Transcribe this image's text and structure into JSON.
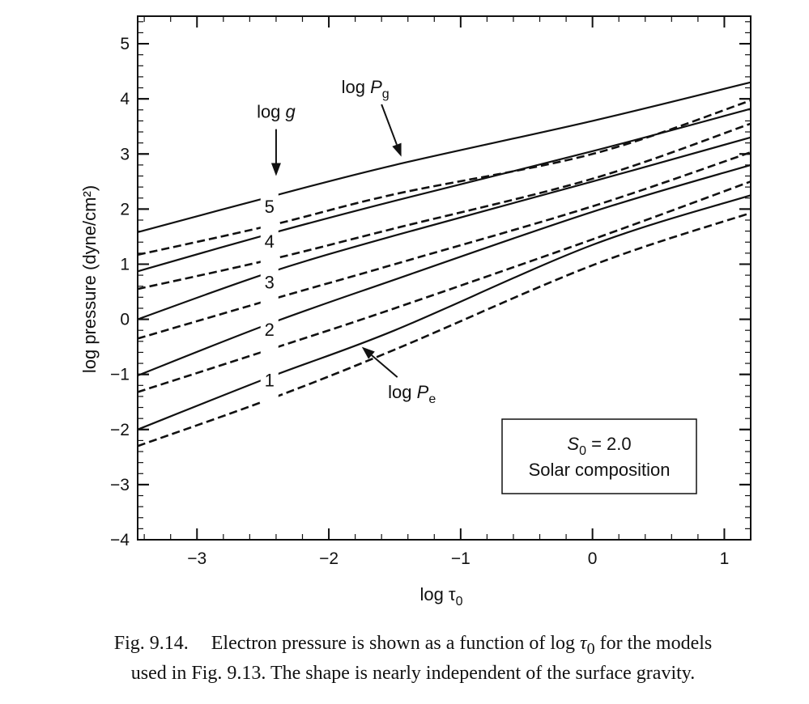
{
  "chart_data": {
    "type": "line",
    "xlabel": "log τ",
    "xlabel_sub": "0",
    "ylabel": "log pressure (dyne/cm²)",
    "xlim": [
      -3.45,
      1.2
    ],
    "ylim": [
      -4,
      5.5
    ],
    "xticks": [
      -3,
      -2,
      -1,
      0,
      1
    ],
    "xtick_labels": [
      "−3",
      "−2",
      "−1",
      "0",
      "1"
    ],
    "yticks": [
      -4,
      -3,
      -2,
      -1,
      0,
      1,
      2,
      3,
      4,
      5
    ],
    "ytick_labels": [
      "−4",
      "−3",
      "−2",
      "−1",
      "0",
      "1",
      "2",
      "3",
      "4",
      "5"
    ],
    "gap_x": [
      -2.45,
      -2.45
    ],
    "series": [
      {
        "log_g": "5",
        "kind": "Pg",
        "style": "solid",
        "x": [
          -3.45,
          -2.45,
          -1.5,
          0.0,
          1.2
        ],
        "y": [
          1.58,
          2.22,
          2.8,
          3.6,
          4.3
        ]
      },
      {
        "log_g": "5",
        "kind": "Pe",
        "style": "dashed",
        "x": [
          -3.45,
          -2.45,
          -1.5,
          0.0,
          1.2
        ],
        "y": [
          1.17,
          1.7,
          2.27,
          3.0,
          3.97
        ]
      },
      {
        "log_g": "4",
        "kind": "Pg",
        "style": "solid",
        "x": [
          -3.45,
          -2.45,
          -1.5,
          0.0,
          1.2
        ],
        "y": [
          0.87,
          1.55,
          2.15,
          3.05,
          3.82
        ]
      },
      {
        "log_g": "4",
        "kind": "Pe",
        "style": "dashed",
        "x": [
          -3.45,
          -2.45,
          -1.5,
          0.0,
          1.2
        ],
        "y": [
          0.55,
          1.08,
          1.65,
          2.55,
          3.55
        ]
      },
      {
        "log_g": "3",
        "kind": "Pg",
        "style": "solid",
        "x": [
          -3.45,
          -2.45,
          -1.5,
          0.0,
          1.2
        ],
        "y": [
          0.0,
          0.85,
          1.52,
          2.5,
          3.3
        ]
      },
      {
        "log_g": "3",
        "kind": "Pe",
        "style": "dashed",
        "x": [
          -3.45,
          -2.45,
          -1.5,
          0.0,
          1.2
        ],
        "y": [
          -0.35,
          0.35,
          1.0,
          2.05,
          3.03
        ]
      },
      {
        "log_g": "2",
        "kind": "Pg",
        "style": "solid",
        "x": [
          -3.45,
          -2.45,
          -1.5,
          0.0,
          1.2
        ],
        "y": [
          -1.02,
          -0.08,
          0.72,
          1.95,
          2.8
        ]
      },
      {
        "log_g": "2",
        "kind": "Pe",
        "style": "dashed",
        "x": [
          -3.45,
          -2.45,
          -1.5,
          0.0,
          1.2
        ],
        "y": [
          -1.32,
          -0.55,
          0.2,
          1.45,
          2.5
        ]
      },
      {
        "log_g": "1",
        "kind": "Pg",
        "style": "solid",
        "x": [
          -3.45,
          -2.45,
          -1.5,
          0.0,
          1.2
        ],
        "y": [
          -2.0,
          -1.05,
          -0.2,
          1.35,
          2.25
        ]
      },
      {
        "log_g": "1",
        "kind": "Pe",
        "style": "dashed",
        "x": [
          -3.45,
          -2.45,
          -1.5,
          0.0,
          1.2
        ],
        "y": [
          -2.3,
          -1.45,
          -0.55,
          0.98,
          1.93
        ]
      }
    ],
    "curve_labels": [
      {
        "text": "5",
        "x": -2.45,
        "y": 2.05
      },
      {
        "text": "4",
        "x": -2.45,
        "y": 1.42
      },
      {
        "text": "3",
        "x": -2.45,
        "y": 0.68
      },
      {
        "text": "2",
        "x": -2.45,
        "y": -0.18
      },
      {
        "text": "1",
        "x": -2.45,
        "y": -1.1
      }
    ],
    "annotations": {
      "log_g": {
        "prefix": "log",
        "var": "g",
        "arrow_from": [
          -2.4,
          3.45
        ],
        "arrow_to": [
          -2.4,
          2.6
        ]
      },
      "log_pg": {
        "prefix": "log",
        "var": "P",
        "sub": "g",
        "arrow_from": [
          -1.6,
          3.9
        ],
        "arrow_to": [
          -1.45,
          2.95
        ]
      },
      "log_pe": {
        "prefix": "log",
        "var": "P",
        "sub": "e",
        "arrow_from": [
          -1.48,
          -1.05
        ],
        "arrow_to": [
          -1.75,
          -0.5
        ]
      }
    },
    "legend_box": {
      "line1_var": "S",
      "line1_sub": "0",
      "line1_rest": " = 2.0",
      "line2": "Solar composition",
      "placement": "bottom-right"
    }
  },
  "caption": {
    "figure_number": "Fig. 9.14.",
    "line1_part1": "Electron pressure is shown as a function of log ",
    "line1_tau": "τ",
    "line1_sub": "0",
    "line1_part2": " for the models",
    "line2": "used in Fig. 9.13. The shape is nearly independent of the surface gravity."
  }
}
